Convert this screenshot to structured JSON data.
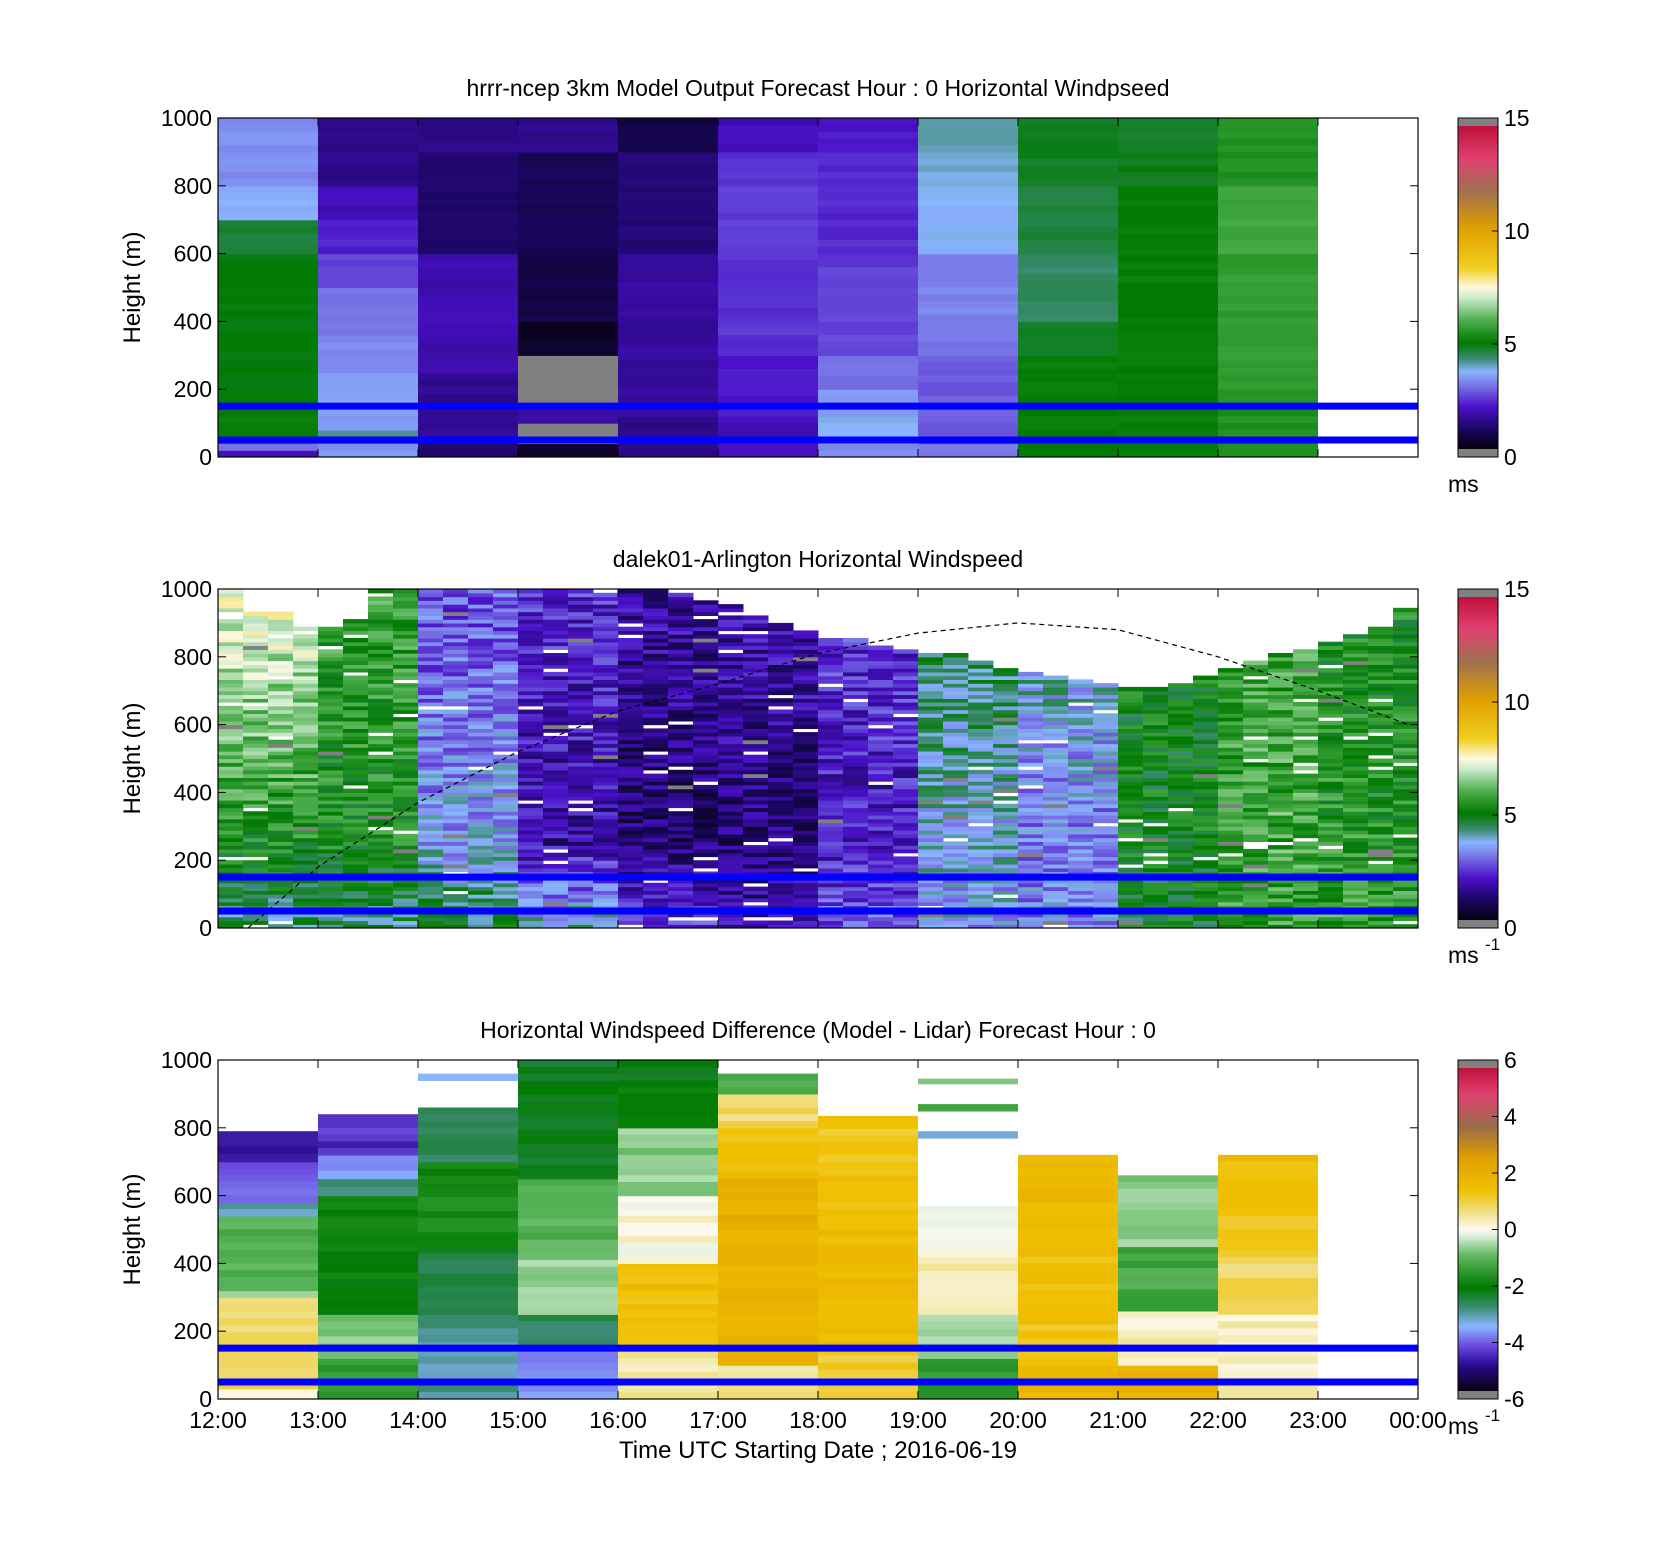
{
  "colors": {
    "background": "#ffffff",
    "ref_line": "#0000ff",
    "missing": "#808080"
  },
  "chart_data": [
    {
      "type": "heatmap",
      "title": "hrrr-ncep 3km Model Output   Forecast Hour : 0 Horizontal Windpseed",
      "ylabel": "Height (m)",
      "xlabel": "",
      "ylim": [
        0,
        1000
      ],
      "yticks": [
        "0",
        "200",
        "400",
        "600",
        "800",
        "1000"
      ],
      "xlim": [
        12,
        24
      ],
      "colorbar": {
        "min": 0,
        "max": 15,
        "ticks": [
          "0",
          "5",
          "10",
          "15"
        ],
        "unit": "ms",
        "palette": "speed"
      },
      "reference_lines_m": [
        50,
        150
      ],
      "dashed_curve": null,
      "time_bins": [
        {
          "start": 12,
          "end": 13,
          "levels": [
            [
              0,
              20,
              1.8
            ],
            [
              20,
              40,
              3.0
            ],
            [
              40,
              60,
              4.3
            ],
            [
              60,
              120,
              5.0
            ],
            [
              120,
              600,
              4.9
            ],
            [
              600,
              700,
              4.6
            ],
            [
              700,
              800,
              3.5
            ],
            [
              800,
              1000,
              3.2
            ]
          ]
        },
        {
          "start": 13,
          "end": 14,
          "levels": [
            [
              0,
              40,
              3.3
            ],
            [
              40,
              80,
              4.1
            ],
            [
              80,
              250,
              3.4
            ],
            [
              250,
              360,
              3.2
            ],
            [
              360,
              400,
              3.0
            ],
            [
              400,
              500,
              2.9
            ],
            [
              500,
              600,
              2.5
            ],
            [
              600,
              700,
              2.1
            ],
            [
              700,
              800,
              1.8
            ],
            [
              800,
              1000,
              1.3
            ]
          ]
        },
        {
          "start": 14,
          "end": 15,
          "levels": [
            [
              0,
              60,
              1.0
            ],
            [
              60,
              250,
              1.4
            ],
            [
              250,
              600,
              1.7
            ],
            [
              600,
              900,
              1.0
            ],
            [
              900,
              1000,
              1.3
            ]
          ]
        },
        {
          "start": 15,
          "end": 16,
          "levels": [
            [
              0,
              40,
              0.3
            ],
            [
              40,
              100,
              -1
            ],
            [
              100,
              150,
              1.6
            ],
            [
              150,
              300,
              -1
            ],
            [
              300,
              400,
              0.3
            ],
            [
              400,
              600,
              0.6
            ],
            [
              600,
              900,
              0.8
            ],
            [
              900,
              1000,
              1.4
            ]
          ]
        },
        {
          "start": 16,
          "end": 17,
          "levels": [
            [
              0,
              120,
              1.3
            ],
            [
              120,
              600,
              1.5
            ],
            [
              600,
              900,
              1.1
            ],
            [
              900,
              1000,
              0.6
            ]
          ]
        },
        {
          "start": 17,
          "end": 18,
          "levels": [
            [
              0,
              120,
              1.8
            ],
            [
              120,
              300,
              2.0
            ],
            [
              300,
              600,
              2.3
            ],
            [
              600,
              800,
              2.4
            ],
            [
              800,
              900,
              2.3
            ],
            [
              900,
              1000,
              1.8
            ]
          ]
        },
        {
          "start": 18,
          "end": 19,
          "levels": [
            [
              0,
              40,
              3.2
            ],
            [
              40,
              120,
              3.6
            ],
            [
              120,
              200,
              3.3
            ],
            [
              200,
              300,
              2.9
            ],
            [
              300,
              400,
              2.5
            ],
            [
              400,
              600,
              2.4
            ],
            [
              600,
              900,
              2.2
            ],
            [
              900,
              1000,
              2.0
            ]
          ]
        },
        {
          "start": 19,
          "end": 20,
          "levels": [
            [
              0,
              40,
              2.9
            ],
            [
              40,
              300,
              2.7
            ],
            [
              300,
              400,
              3.0
            ],
            [
              400,
              600,
              3.1
            ],
            [
              600,
              800,
              3.6
            ],
            [
              800,
              900,
              3.8
            ],
            [
              900,
              1000,
              4.0
            ]
          ]
        },
        {
          "start": 20,
          "end": 21,
          "levels": [
            [
              0,
              300,
              5.0
            ],
            [
              300,
              400,
              4.7
            ],
            [
              400,
              600,
              4.3
            ],
            [
              600,
              800,
              4.5
            ],
            [
              800,
              1000,
              4.7
            ]
          ]
        },
        {
          "start": 21,
          "end": 22,
          "levels": [
            [
              0,
              800,
              5.0
            ],
            [
              800,
              900,
              4.8
            ],
            [
              900,
              1000,
              4.7
            ]
          ]
        },
        {
          "start": 22,
          "end": 23,
          "levels": [
            [
              0,
              200,
              5.4
            ],
            [
              200,
              600,
              5.6
            ],
            [
              600,
              800,
              5.8
            ],
            [
              800,
              1000,
              5.4
            ]
          ]
        }
      ]
    },
    {
      "type": "heatmap",
      "title": "dalek01-Arlington  Horizontal Windspeed",
      "ylabel": "Height (m)",
      "xlabel": "",
      "ylim": [
        0,
        1000
      ],
      "yticks": [
        "0",
        "200",
        "400",
        "600",
        "800",
        "1000"
      ],
      "xlim": [
        12,
        24
      ],
      "colorbar": {
        "min": 0,
        "max": 15,
        "ticks": [
          "0",
          "5",
          "10",
          "15"
        ],
        "unit": "ms",
        "unit_exp": "-1",
        "palette": "speed"
      },
      "reference_lines_m": [
        50,
        150
      ],
      "dashed_curve": {
        "x": [
          12.3,
          13,
          14,
          15,
          16,
          17,
          18,
          19,
          20,
          21,
          22,
          23,
          23.9
        ],
        "y": [
          0,
          180,
          370,
          520,
          640,
          720,
          810,
          870,
          900,
          880,
          800,
          700,
          600
        ]
      },
      "profile_columns_per_hour": 4,
      "top_row_m": [
        1000,
        930,
        930,
        880,
        880,
        900,
        1000,
        1000,
        1000,
        1000,
        1000,
        1000,
        1000,
        1000,
        1000,
        1000,
        1000,
        1000,
        980,
        960,
        950,
        920,
        890,
        870,
        850,
        850,
        830,
        820,
        810,
        800,
        780,
        760,
        750,
        740,
        730,
        720,
        710,
        700,
        720,
        740,
        760,
        780,
        800,
        820,
        840,
        860,
        880,
        950
      ],
      "speed_profiles": [
        {
          "hour": 12,
          "surface": 4.2,
          "mid": 5.2,
          "top": 7.6
        },
        {
          "hour": 13,
          "surface": 4.3,
          "mid": 5.2,
          "top": 5.6
        },
        {
          "hour": 14,
          "surface": 4.6,
          "mid": 3.4,
          "top": 2.6
        },
        {
          "hour": 15,
          "surface": 3.9,
          "mid": 1.6,
          "top": 2.2
        },
        {
          "hour": 16,
          "surface": 2.4,
          "mid": 1.0,
          "top": 1.6
        },
        {
          "hour": 17,
          "surface": 1.6,
          "mid": 1.1,
          "top": 1.8
        },
        {
          "hour": 18,
          "surface": 2.8,
          "mid": 1.9,
          "top": 2.3
        },
        {
          "hour": 19,
          "surface": 3.4,
          "mid": 3.6,
          "top": 4.6
        },
        {
          "hour": 20,
          "surface": 3.2,
          "mid": 3.0,
          "top": 4.2
        },
        {
          "hour": 21,
          "surface": 4.8,
          "mid": 5.0,
          "top": 5.0
        },
        {
          "hour": 22,
          "surface": 5.6,
          "mid": 5.8,
          "top": 5.6
        },
        {
          "hour": 23,
          "surface": 5.6,
          "mid": 5.4,
          "top": 5.2
        }
      ]
    },
    {
      "type": "heatmap",
      "title": "Horizontal Windspeed Difference (Model - Lidar) Forecast Hour : 0",
      "ylabel": "Height (m)",
      "xlabel": "Time UTC  Starting Date ; 2016-06-19",
      "ylim": [
        0,
        1000
      ],
      "yticks": [
        "0",
        "200",
        "400",
        "600",
        "800",
        "1000"
      ],
      "xlim": [
        12,
        24
      ],
      "xticks": [
        "12:00",
        "13:00",
        "14:00",
        "15:00",
        "16:00",
        "17:00",
        "18:00",
        "19:00",
        "20:00",
        "21:00",
        "22:00",
        "23:00",
        "00:00"
      ],
      "colorbar": {
        "min": -6,
        "max": 6,
        "ticks": [
          "-6",
          "-4",
          "-2",
          "0",
          "2",
          "4",
          "6"
        ],
        "unit": "ms",
        "unit_exp": "-1",
        "palette": "diff"
      },
      "reference_lines_m": [
        50,
        150
      ],
      "dashed_curve": null,
      "time_bins": [
        {
          "start": 12,
          "end": 13,
          "levels": [
            [
              0,
              30,
              0.3
            ],
            [
              30,
              300,
              0.8
            ],
            [
              300,
              320,
              -0.5
            ],
            [
              320,
              540,
              -1.1
            ],
            [
              540,
              580,
              -3.2
            ],
            [
              580,
              700,
              -4.1
            ],
            [
              700,
              790,
              -5.0
            ]
          ]
        },
        {
          "start": 13,
          "end": 14,
          "levels": [
            [
              0,
              120,
              -1.5
            ],
            [
              120,
              250,
              -0.8
            ],
            [
              250,
              600,
              -2.1
            ],
            [
              600,
              650,
              -2.9
            ],
            [
              650,
              720,
              -3.9
            ],
            [
              720,
              840,
              -4.6
            ]
          ]
        },
        {
          "start": 14,
          "end": 15,
          "levels": [
            [
              0,
              250,
              -3.1
            ],
            [
              250,
              450,
              -2.6
            ],
            [
              450,
              700,
              -1.9
            ],
            [
              700,
              860,
              -2.8
            ],
            [
              940,
              960,
              -3.5
            ]
          ]
        },
        {
          "start": 15,
          "end": 16,
          "levels": [
            [
              0,
              150,
              -3.9
            ],
            [
              150,
              250,
              -2.7
            ],
            [
              250,
              450,
              -0.7
            ],
            [
              450,
              650,
              -1.1
            ],
            [
              650,
              1000,
              -2.3
            ]
          ]
        },
        {
          "start": 16,
          "end": 17,
          "levels": [
            [
              0,
              160,
              0.4
            ],
            [
              160,
              400,
              1.5
            ],
            [
              400,
              600,
              0.1
            ],
            [
              600,
              800,
              -0.7
            ],
            [
              800,
              1000,
              -2.2
            ]
          ]
        },
        {
          "start": 17,
          "end": 18,
          "levels": [
            [
              0,
              100,
              0.6
            ],
            [
              100,
              500,
              1.9
            ],
            [
              500,
              650,
              2.1
            ],
            [
              650,
              800,
              1.5
            ],
            [
              800,
              900,
              0.8
            ],
            [
              900,
              960,
              -1.1
            ]
          ]
        },
        {
          "start": 18,
          "end": 19,
          "levels": [
            [
              0,
              150,
              1.1
            ],
            [
              150,
              500,
              1.6
            ],
            [
              500,
              700,
              1.4
            ],
            [
              700,
              835,
              1.2
            ]
          ]
        },
        {
          "start": 19,
          "end": 20,
          "levels": [
            [
              0,
              120,
              -1.6
            ],
            [
              120,
              250,
              -0.6
            ],
            [
              250,
              420,
              0.3
            ],
            [
              420,
              570,
              -0.1
            ],
            [
              770,
              790,
              -3.2
            ],
            [
              850,
              870,
              -1.2
            ],
            [
              930,
              945,
              -0.9
            ]
          ]
        },
        {
          "start": 20,
          "end": 21,
          "levels": [
            [
              0,
              100,
              1.8
            ],
            [
              100,
              300,
              1.4
            ],
            [
              300,
              560,
              1.5
            ],
            [
              560,
              720,
              1.7
            ]
          ]
        },
        {
          "start": 21,
          "end": 22,
          "levels": [
            [
              0,
              100,
              1.9
            ],
            [
              100,
              260,
              0.3
            ],
            [
              260,
              450,
              -1.3
            ],
            [
              450,
              600,
              -0.6
            ],
            [
              600,
              660,
              -0.7
            ]
          ]
        },
        {
          "start": 22,
          "end": 23,
          "levels": [
            [
              0,
              250,
              0.3
            ],
            [
              250,
              420,
              0.9
            ],
            [
              420,
              600,
              1.4
            ],
            [
              600,
              720,
              1.5
            ]
          ]
        }
      ]
    }
  ]
}
